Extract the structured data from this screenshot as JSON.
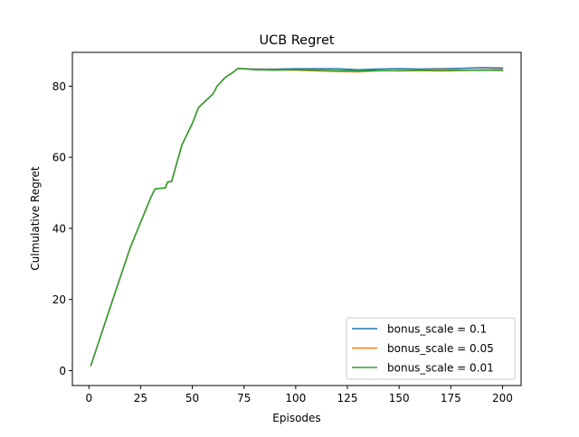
{
  "chart_data": {
    "type": "line",
    "title": "UCB Regret",
    "xlabel": "Episodes",
    "ylabel": "Culmulative Regret",
    "xlim": [
      -8,
      209
    ],
    "ylim": [
      -4.2,
      89.5
    ],
    "xticks": [
      0,
      25,
      50,
      75,
      100,
      125,
      150,
      175,
      200
    ],
    "yticks": [
      0,
      20,
      40,
      60,
      80
    ],
    "grid": false,
    "legend_position": "lower right",
    "series": [
      {
        "name": "bonus_scale = 0.1",
        "color": "#1f77b4",
        "x": [
          1,
          10,
          20,
          30,
          32,
          37,
          38,
          40,
          45,
          50,
          53,
          60,
          62,
          66,
          70,
          72,
          80,
          90,
          100,
          110,
          120,
          130,
          140,
          150,
          160,
          170,
          180,
          190,
          200
        ],
        "y": [
          1.5,
          17.3,
          34.6,
          48.8,
          51.1,
          51.4,
          53.0,
          53.2,
          63.5,
          69.5,
          74.0,
          77.8,
          80.0,
          82.5,
          84.0,
          85.0,
          84.8,
          84.8,
          84.9,
          84.9,
          84.9,
          84.6,
          84.8,
          84.9,
          84.8,
          84.9,
          85.0,
          85.2,
          85.1
        ]
      },
      {
        "name": "bonus_scale = 0.05",
        "color": "#ff7f0e",
        "x": [
          1,
          10,
          20,
          30,
          32,
          37,
          38,
          40,
          45,
          50,
          53,
          60,
          62,
          66,
          70,
          72,
          80,
          90,
          100,
          110,
          120,
          130,
          140,
          150,
          160,
          170,
          180,
          190,
          200
        ],
        "y": [
          1.5,
          17.3,
          34.6,
          48.8,
          51.1,
          51.4,
          53.0,
          53.2,
          63.5,
          69.5,
          74.0,
          77.8,
          80.0,
          82.5,
          84.0,
          85.0,
          84.7,
          84.6,
          84.5,
          84.3,
          84.1,
          84.0,
          84.3,
          84.4,
          84.5,
          84.6,
          84.5,
          84.6,
          84.7
        ]
      },
      {
        "name": "bonus_scale = 0.01",
        "color": "#2ca02c",
        "x": [
          1,
          10,
          20,
          30,
          32,
          37,
          38,
          40,
          45,
          50,
          53,
          60,
          62,
          66,
          70,
          72,
          80,
          90,
          100,
          110,
          120,
          130,
          140,
          150,
          160,
          170,
          180,
          190,
          200
        ],
        "y": [
          1.5,
          17.3,
          34.6,
          48.8,
          51.1,
          51.4,
          53.0,
          53.2,
          63.5,
          69.5,
          74.0,
          77.8,
          80.0,
          82.5,
          84.0,
          85.0,
          84.6,
          84.5,
          84.6,
          84.5,
          84.4,
          84.3,
          84.4,
          84.3,
          84.4,
          84.3,
          84.4,
          84.5,
          84.4
        ]
      }
    ]
  }
}
